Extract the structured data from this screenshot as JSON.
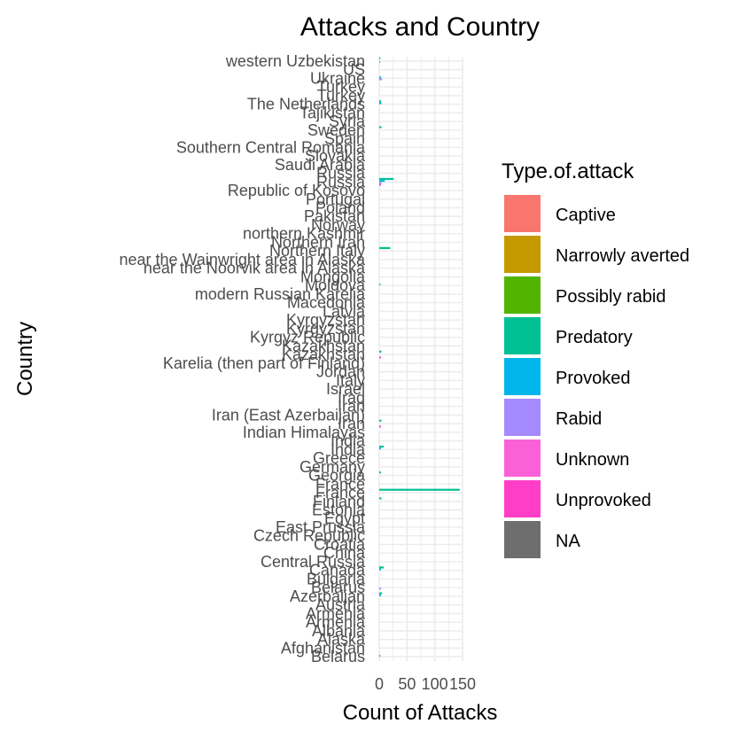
{
  "chart_data": {
    "type": "bar",
    "orientation": "horizontal",
    "title": "Attacks and Country",
    "xlabel": "Count of Attacks",
    "ylabel": "Country",
    "xlim": [
      0,
      150
    ],
    "x_ticks": [
      "0",
      "50",
      "100",
      "150"
    ],
    "grid": true,
    "legend": {
      "title": "Type.of.attack",
      "position": "right",
      "entries": [
        {
          "label": "Captive",
          "color": "#F8766D"
        },
        {
          "label": "Narrowly averted",
          "color": "#C49A00"
        },
        {
          "label": "Possibly rabid",
          "color": "#53B400"
        },
        {
          "label": "Predatory",
          "color": "#00C094"
        },
        {
          "label": "Provoked",
          "color": "#00B6EB"
        },
        {
          "label": "Rabid",
          "color": "#A58AFF"
        },
        {
          "label": "Unknown",
          "color": "#FB61D7"
        },
        {
          "label": "Unprovoked",
          "color": "#FF3EC8"
        },
        {
          "label": "NA",
          "color": "#6E6E6E"
        }
      ]
    },
    "categories": [
      "western Uzbekistan",
      "US",
      "Ukraine",
      "Turkey",
      "Turkey",
      "The Netherlands",
      "Tajikistan",
      "Syria",
      "Sweden",
      "Spain",
      "Southern Central Romania",
      "Slovakia",
      "Saudi Arabia",
      "Russia",
      "Russia",
      "Republic of Kosovo",
      "Portugal",
      "Poland",
      "Pakistan",
      "Norway",
      "northern Kashmir",
      "Northern Iran",
      "Northern Italy",
      "near the Wainwright area in Alaska",
      "near the Noorvik area in Alaska",
      "Mongolia",
      "Moldova",
      "modern Russian Karelia",
      "Macedonia",
      "Latvia",
      "Kyrgyzstan",
      "Kyrgyzstan",
      "Kyrgyz Republic",
      "Kazakhstan",
      "Kazakhstan",
      "Karelia (then part of Finland)",
      "Jordan",
      "Italy",
      "Israel",
      "Iraq",
      "Iran",
      "Iran (East Azerbaijan)",
      "Iran",
      "Indian Himalayas",
      "India",
      "India",
      "Greece",
      "Germany",
      "Georgia",
      "France",
      "France",
      "Finland",
      "Estonia",
      "Egypt",
      "East Prussia",
      "Czech Republic",
      "Croatia",
      "China",
      "Central Russia",
      "Canada",
      "Bulgaria",
      "Belarus",
      "Azerbaijan",
      "Austria",
      "Armenia",
      "Armenia",
      "Albania",
      "Alaska",
      "Afghanistan",
      "Belarus"
    ],
    "series": [
      {
        "label": "Predatory",
        "values": [
          2,
          0,
          0,
          0,
          0,
          3,
          0,
          0,
          4,
          0,
          0,
          0,
          0,
          0,
          26,
          0,
          0,
          0,
          0,
          0,
          0,
          0,
          20,
          0,
          0,
          0,
          0,
          0,
          0,
          0,
          0,
          0,
          0,
          0,
          4,
          0,
          0,
          0,
          0,
          0,
          0,
          0,
          4,
          0,
          0,
          8,
          0,
          0,
          3,
          0,
          145,
          4,
          0,
          0,
          0,
          0,
          0,
          0,
          0,
          8,
          0,
          0,
          5,
          0,
          0,
          0,
          0,
          0,
          0,
          0
        ]
      },
      {
        "label": "Provoked",
        "values": [
          0,
          0,
          3,
          0,
          0,
          4,
          0,
          0,
          0,
          0,
          0,
          0,
          0,
          0,
          10,
          0,
          0,
          0,
          0,
          0,
          0,
          0,
          0,
          0,
          0,
          0,
          2,
          0,
          0,
          0,
          0,
          0,
          0,
          0,
          0,
          0,
          0,
          0,
          0,
          0,
          0,
          0,
          0,
          0,
          0,
          3,
          0,
          0,
          0,
          0,
          0,
          0,
          0,
          0,
          0,
          0,
          0,
          0,
          0,
          3,
          0,
          0,
          3,
          0,
          0,
          0,
          0,
          0,
          0,
          2
        ]
      },
      {
        "label": "Rabid",
        "values": [
          2,
          0,
          5,
          0,
          0,
          0,
          0,
          0,
          0,
          0,
          0,
          0,
          0,
          0,
          4,
          0,
          0,
          0,
          0,
          0,
          0,
          0,
          0,
          0,
          0,
          0,
          0,
          0,
          0,
          0,
          0,
          0,
          0,
          0,
          0,
          0,
          0,
          0,
          0,
          0,
          0,
          0,
          0,
          0,
          0,
          0,
          0,
          0,
          0,
          0,
          0,
          0,
          0,
          0,
          0,
          0,
          0,
          0,
          0,
          0,
          0,
          3,
          0,
          0,
          0,
          0,
          0,
          0,
          0,
          0
        ]
      },
      {
        "label": "Unprovoked",
        "values": [
          0,
          0,
          0,
          0,
          0,
          0,
          0,
          0,
          0,
          0,
          0,
          0,
          0,
          0,
          3,
          0,
          0,
          0,
          0,
          0,
          0,
          0,
          0,
          0,
          0,
          0,
          0,
          0,
          0,
          0,
          0,
          0,
          0,
          0,
          3,
          0,
          0,
          0,
          0,
          0,
          0,
          0,
          3,
          0,
          0,
          0,
          0,
          0,
          0,
          0,
          0,
          0,
          0,
          0,
          0,
          0,
          0,
          0,
          0,
          0,
          0,
          0,
          0,
          0,
          0,
          0,
          0,
          0,
          0,
          0
        ]
      }
    ]
  }
}
